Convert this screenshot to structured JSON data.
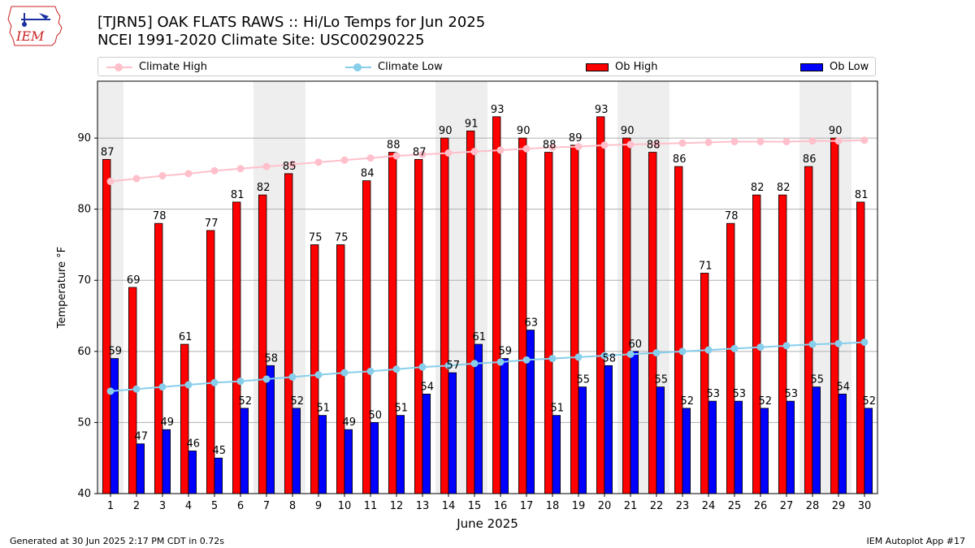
{
  "header": {
    "title_line1": "[TJRN5] OAK FLATS RAWS :: Hi/Lo Temps for Jun 2025",
    "title_line2": "NCEI 1991-2020 Climate Site: USC00290225",
    "logo_text": "IEM"
  },
  "legend": {
    "climate_high": "Climate High",
    "climate_low": "Climate Low",
    "ob_high": "Ob High",
    "ob_low": "Ob Low"
  },
  "footer": {
    "left": "Generated at 30 Jun 2025 2:17 PM CDT in 0.72s",
    "right": "IEM Autoplot App #17"
  },
  "colors": {
    "ob_high": "#ff0000",
    "ob_low": "#0000ff",
    "climate_high": "#ffc0cb",
    "climate_low": "#87ceeb",
    "weekend_shade": "#eeeeee",
    "grid": "#b0b0b0"
  },
  "chart_data": {
    "type": "bar",
    "xlabel": "June 2025",
    "ylabel": "Temperature °F",
    "ylim": [
      40,
      98
    ],
    "yticks": [
      40,
      50,
      60,
      70,
      80,
      90
    ],
    "grid": "horizontal",
    "legend_position": "top",
    "categories": [
      1,
      2,
      3,
      4,
      5,
      6,
      7,
      8,
      9,
      10,
      11,
      12,
      13,
      14,
      15,
      16,
      17,
      18,
      19,
      20,
      21,
      22,
      23,
      24,
      25,
      26,
      27,
      28,
      29,
      30
    ],
    "shaded_days": [
      1,
      7,
      8,
      14,
      15,
      21,
      22,
      28,
      29
    ],
    "series": [
      {
        "name": "Ob High",
        "kind": "bar",
        "values": [
          87,
          69,
          78,
          61,
          77,
          81,
          82,
          85,
          75,
          75,
          84,
          88,
          87,
          90,
          91,
          93,
          90,
          88,
          89,
          93,
          90,
          88,
          86,
          71,
          78,
          82,
          82,
          86,
          90,
          81
        ]
      },
      {
        "name": "Ob Low",
        "kind": "bar",
        "values": [
          59,
          47,
          49,
          46,
          45,
          52,
          58,
          52,
          51,
          49,
          50,
          51,
          54,
          57,
          61,
          59,
          63,
          51,
          55,
          58,
          60,
          55,
          52,
          53,
          53,
          52,
          53,
          55,
          54,
          52
        ]
      },
      {
        "name": "Climate High",
        "kind": "line",
        "values": [
          83.9,
          84.3,
          84.7,
          85.0,
          85.4,
          85.7,
          86.0,
          86.3,
          86.6,
          86.9,
          87.2,
          87.5,
          87.7,
          87.9,
          88.1,
          88.3,
          88.5,
          88.7,
          88.8,
          89.0,
          89.1,
          89.2,
          89.3,
          89.4,
          89.5,
          89.5,
          89.5,
          89.6,
          89.6,
          89.7
        ]
      },
      {
        "name": "Climate Low",
        "kind": "line",
        "values": [
          54.4,
          54.7,
          55.0,
          55.3,
          55.6,
          55.8,
          56.1,
          56.4,
          56.7,
          57.0,
          57.2,
          57.5,
          57.8,
          58.0,
          58.3,
          58.5,
          58.8,
          59.0,
          59.2,
          59.4,
          59.6,
          59.8,
          60.0,
          60.2,
          60.4,
          60.6,
          60.8,
          61.0,
          61.1,
          61.3
        ]
      }
    ]
  }
}
